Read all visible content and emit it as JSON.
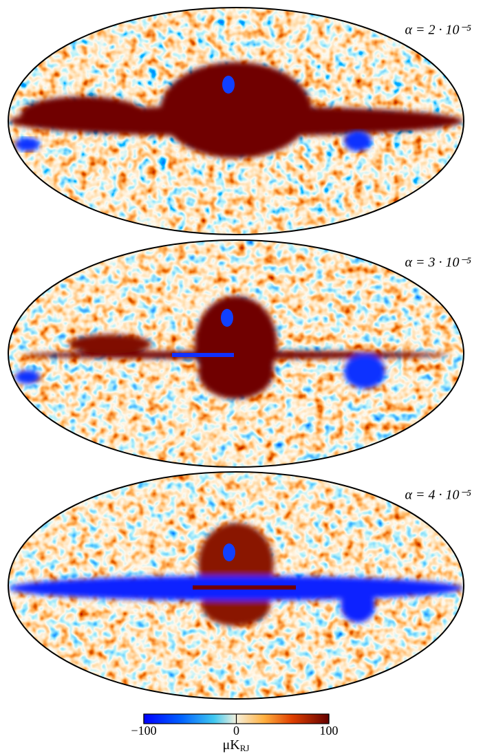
{
  "panels": [
    {
      "label": "α = 2 · 10⁻⁵"
    },
    {
      "label": "α = 3 · 10⁻⁵"
    },
    {
      "label": "α = 4 · 10⁻⁵"
    }
  ],
  "colorbar": {
    "range": [
      -100,
      100
    ],
    "ticks": [
      {
        "value": -100,
        "label": "−100"
      },
      0,
      100
    ],
    "unit": "μK",
    "unit_subscript": "RJ"
  }
}
